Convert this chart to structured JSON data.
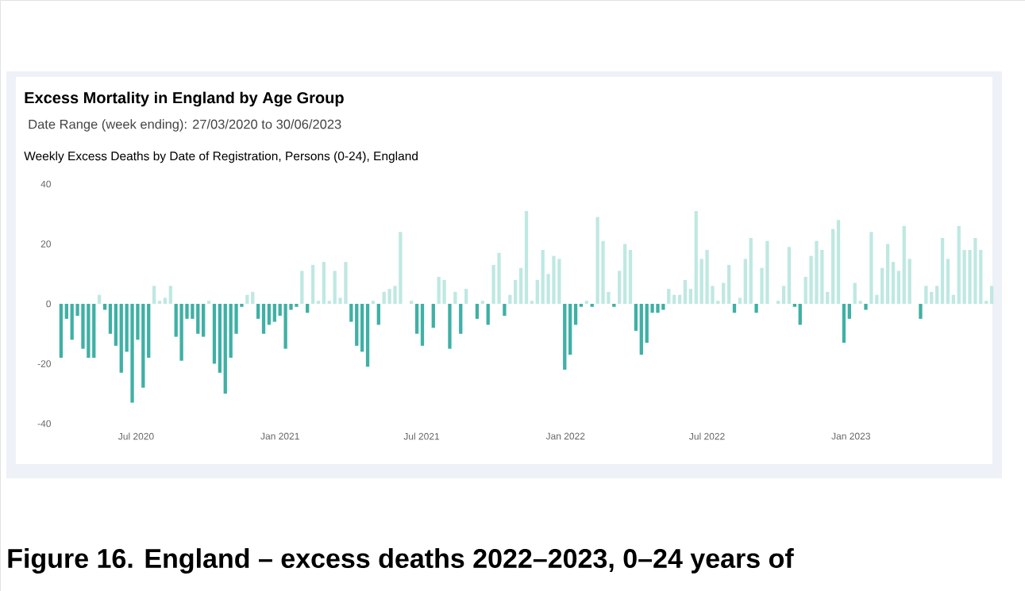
{
  "chart_data": {
    "type": "bar",
    "title": "Excess Mortality in England by Age Group",
    "subtitle": "Date Range (week ending): 27/03/2020 to 30/06/2023",
    "annotations": [
      "Weekly Excess Deaths by Date of Registration, Persons (0-24), England",
      "Figure 16. England – excess deaths 2022–2023, 0–24 years of"
    ],
    "x": [
      "2020-03-27",
      "2020-04-03",
      "2020-04-10",
      "2020-04-17",
      "2020-04-24",
      "2020-05-01",
      "2020-05-08",
      "2020-05-15",
      "2020-05-22",
      "2020-05-29",
      "2020-06-05",
      "2020-06-12",
      "2020-06-19",
      "2020-06-26",
      "2020-07-03",
      "2020-07-10",
      "2020-07-17",
      "2020-07-24",
      "2020-07-31",
      "2020-08-07",
      "2020-08-14",
      "2020-08-21",
      "2020-08-28",
      "2020-09-04",
      "2020-09-11",
      "2020-09-18",
      "2020-09-25",
      "2020-10-02",
      "2020-10-09",
      "2020-10-16",
      "2020-10-23",
      "2020-10-30",
      "2020-11-06",
      "2020-11-13",
      "2020-11-20",
      "2020-11-27",
      "2020-12-04",
      "2020-12-11",
      "2020-12-18",
      "2020-12-25",
      "2021-01-01",
      "2021-01-08",
      "2021-01-15",
      "2021-01-22",
      "2021-01-29",
      "2021-02-05",
      "2021-02-12",
      "2021-02-19",
      "2021-02-26",
      "2021-03-05",
      "2021-03-12",
      "2021-03-19",
      "2021-03-26",
      "2021-04-02",
      "2021-04-09",
      "2021-04-16",
      "2021-04-23",
      "2021-04-30",
      "2021-05-07",
      "2021-05-14",
      "2021-05-21",
      "2021-05-28",
      "2021-06-04",
      "2021-06-11",
      "2021-06-18",
      "2021-06-25",
      "2021-07-02",
      "2021-07-09",
      "2021-07-16",
      "2021-07-23",
      "2021-07-30",
      "2021-08-06",
      "2021-08-13",
      "2021-08-20",
      "2021-08-27",
      "2021-09-03",
      "2021-09-10",
      "2021-09-17",
      "2021-09-24",
      "2021-10-01",
      "2021-10-08",
      "2021-10-15",
      "2021-10-22",
      "2021-10-29",
      "2021-11-05",
      "2021-11-12",
      "2021-11-19",
      "2021-11-26",
      "2021-12-03",
      "2021-12-10",
      "2021-12-17",
      "2021-12-24",
      "2021-12-31",
      "2022-01-07",
      "2022-01-14",
      "2022-01-21",
      "2022-01-28",
      "2022-02-04",
      "2022-02-11",
      "2022-02-18",
      "2022-02-25",
      "2022-03-04",
      "2022-03-11",
      "2022-03-18",
      "2022-03-25",
      "2022-04-01",
      "2022-04-08",
      "2022-04-15",
      "2022-04-22",
      "2022-04-29",
      "2022-05-06",
      "2022-05-13",
      "2022-05-20",
      "2022-05-27",
      "2022-06-03",
      "2022-06-10",
      "2022-06-17",
      "2022-06-24",
      "2022-07-01",
      "2022-07-08",
      "2022-07-15",
      "2022-07-22",
      "2022-07-29",
      "2022-08-05",
      "2022-08-12",
      "2022-08-19",
      "2022-08-26",
      "2022-09-02",
      "2022-09-09",
      "2022-09-16",
      "2022-09-23",
      "2022-09-30",
      "2022-10-07",
      "2022-10-14",
      "2022-10-21",
      "2022-10-28",
      "2022-11-04",
      "2022-11-11",
      "2022-11-18",
      "2022-11-25",
      "2022-12-02",
      "2022-12-09",
      "2022-12-16",
      "2022-12-23",
      "2022-12-30",
      "2023-01-06",
      "2023-01-13",
      "2023-01-20",
      "2023-01-27",
      "2023-02-03",
      "2023-02-10",
      "2023-02-17",
      "2023-02-24",
      "2023-03-03",
      "2023-03-10",
      "2023-03-17",
      "2023-03-24",
      "2023-03-31",
      "2023-04-07",
      "2023-04-14",
      "2023-04-21",
      "2023-04-28",
      "2023-05-05",
      "2023-05-12",
      "2023-05-19",
      "2023-05-26",
      "2023-06-02",
      "2023-06-09",
      "2023-06-16",
      "2023-06-23",
      "2023-06-30"
    ],
    "values": [
      -18,
      -5,
      -12,
      -4,
      -15,
      -18,
      -18,
      3,
      -2,
      -10,
      -14,
      -23,
      -16,
      -33,
      -12,
      -28,
      -18,
      6,
      1,
      2,
      6,
      -11,
      -19,
      -5,
      -5,
      -10,
      -11,
      1,
      -20,
      -23,
      -30,
      -18,
      -10,
      -1,
      3,
      4,
      -5,
      -10,
      -7,
      -6,
      -4,
      -15,
      -2,
      -1,
      11,
      -3,
      13,
      1,
      14,
      1,
      11,
      2,
      14,
      -6,
      -14,
      -16,
      -21,
      1,
      -7,
      4,
      5,
      6,
      24,
      null,
      1,
      -10,
      -14,
      null,
      -8,
      9,
      8,
      -15,
      4,
      -10,
      5,
      null,
      -5,
      1,
      -7,
      13,
      17,
      -4,
      3,
      8,
      12,
      31,
      1,
      8,
      18,
      10,
      16,
      15,
      -22,
      -17,
      -7,
      -1,
      1,
      -1,
      29,
      21,
      4,
      -1,
      11,
      20,
      18,
      -9,
      -17,
      -13,
      -3,
      -3,
      -2,
      5,
      3,
      3,
      8,
      5,
      31,
      15,
      18,
      6,
      1,
      7,
      13,
      -3,
      2,
      15,
      22,
      -3,
      12,
      21,
      null,
      1,
      6,
      19,
      -1,
      -7,
      9,
      16,
      21,
      18,
      4,
      25,
      28,
      -13,
      -5,
      7,
      1,
      -2,
      24,
      3,
      12,
      20,
      14,
      11,
      26,
      15,
      null,
      -5,
      6,
      4,
      6,
      22,
      15,
      3,
      26,
      18,
      18,
      22,
      18,
      1,
      6
    ],
    "colors": [
      "#3fb0a5",
      "#3fb0a5",
      "#3fb0a5",
      "#3fb0a5",
      "#3fb0a5",
      "#3fb0a5",
      "#3fb0a5",
      "#bfe8e2",
      "#3fb0a5",
      "#3fb0a5",
      "#3fb0a5",
      "#3fb0a5",
      "#3fb0a5",
      "#3fb0a5",
      "#3fb0a5",
      "#3fb0a5",
      "#3fb0a5",
      "#bfe8e2",
      "#bfe8e2",
      "#bfe8e2",
      "#bfe8e2",
      "#3fb0a5",
      "#3fb0a5",
      "#3fb0a5",
      "#3fb0a5",
      "#3fb0a5",
      "#3fb0a5",
      "#bfe8e2",
      "#3fb0a5",
      "#3fb0a5",
      "#3fb0a5",
      "#3fb0a5",
      "#3fb0a5",
      "#3fb0a5",
      "#bfe8e2",
      "#bfe8e2",
      "#3fb0a5",
      "#3fb0a5",
      "#3fb0a5",
      "#3fb0a5",
      "#3fb0a5",
      "#3fb0a5",
      "#3fb0a5",
      "#3fb0a5",
      "#bfe8e2",
      "#3fb0a5",
      "#bfe8e2",
      "#bfe8e2",
      "#bfe8e2",
      "#bfe8e2",
      "#bfe8e2",
      "#bfe8e2",
      "#bfe8e2",
      "#3fb0a5",
      "#3fb0a5",
      "#3fb0a5",
      "#3fb0a5",
      "#bfe8e2",
      "#3fb0a5",
      "#bfe8e2",
      "#bfe8e2",
      "#bfe8e2",
      "#bfe8e2",
      "#bfe8e2",
      "#bfe8e2",
      "#3fb0a5",
      "#3fb0a5",
      "#bfe8e2",
      "#3fb0a5",
      "#bfe8e2",
      "#bfe8e2",
      "#3fb0a5",
      "#bfe8e2",
      "#3fb0a5",
      "#bfe8e2",
      "#bfe8e2",
      "#3fb0a5",
      "#bfe8e2",
      "#3fb0a5",
      "#bfe8e2",
      "#bfe8e2",
      "#3fb0a5",
      "#bfe8e2",
      "#bfe8e2",
      "#bfe8e2",
      "#bfe8e2",
      "#bfe8e2",
      "#bfe8e2",
      "#bfe8e2",
      "#bfe8e2",
      "#bfe8e2",
      "#bfe8e2",
      "#3fb0a5",
      "#3fb0a5",
      "#3fb0a5",
      "#3fb0a5",
      "#bfe8e2",
      "#3fb0a5",
      "#bfe8e2",
      "#bfe8e2",
      "#bfe8e2",
      "#3fb0a5",
      "#bfe8e2",
      "#bfe8e2",
      "#bfe8e2",
      "#3fb0a5",
      "#3fb0a5",
      "#3fb0a5",
      "#3fb0a5",
      "#3fb0a5",
      "#3fb0a5",
      "#bfe8e2",
      "#bfe8e2",
      "#bfe8e2",
      "#bfe8e2",
      "#bfe8e2",
      "#bfe8e2",
      "#bfe8e2",
      "#bfe8e2",
      "#bfe8e2",
      "#bfe8e2",
      "#bfe8e2",
      "#bfe8e2",
      "#3fb0a5",
      "#bfe8e2",
      "#bfe8e2",
      "#bfe8e2",
      "#3fb0a5",
      "#bfe8e2",
      "#bfe8e2",
      "#bfe8e2",
      "#bfe8e2",
      "#bfe8e2",
      "#bfe8e2",
      "#3fb0a5",
      "#3fb0a5",
      "#bfe8e2",
      "#bfe8e2",
      "#bfe8e2",
      "#bfe8e2",
      "#bfe8e2",
      "#bfe8e2",
      "#bfe8e2",
      "#3fb0a5",
      "#3fb0a5",
      "#bfe8e2",
      "#bfe8e2",
      "#3fb0a5",
      "#bfe8e2",
      "#bfe8e2",
      "#bfe8e2",
      "#bfe8e2",
      "#bfe8e2",
      "#bfe8e2",
      "#bfe8e2",
      "#bfe8e2",
      "#bfe8e2",
      "#3fb0a5",
      "#bfe8e2",
      "#bfe8e2",
      "#bfe8e2",
      "#bfe8e2",
      "#bfe8e2",
      "#bfe8e2",
      "#bfe8e2",
      "#bfe8e2",
      "#bfe8e2",
      "#bfe8e2",
      "#bfe8e2",
      "#bfe8e2",
      "#bfe8e2"
    ],
    "xlim": [
      "2020-03-20",
      "2023-07-06"
    ],
    "xticks": [
      {
        "value": "2020-07-01",
        "label": "Jul 2020"
      },
      {
        "value": "2021-01-01",
        "label": "Jan 2021"
      },
      {
        "value": "2021-07-01",
        "label": "Jul 2021"
      },
      {
        "value": "2022-01-01",
        "label": "Jan 2022"
      },
      {
        "value": "2022-07-01",
        "label": "Jul 2022"
      },
      {
        "value": "2023-01-01",
        "label": "Jan 2023"
      }
    ],
    "ylim": [
      -40,
      40
    ],
    "yticks": [
      -40,
      -20,
      0,
      20,
      40
    ]
  }
}
